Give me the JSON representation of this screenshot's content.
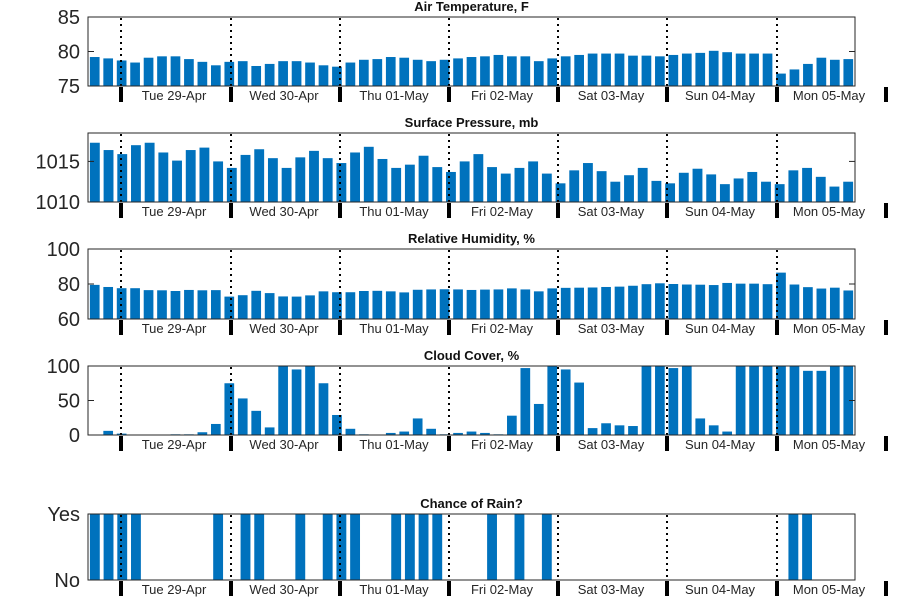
{
  "colors": {
    "bar": "#0072bd",
    "axis": "#262626",
    "text": "#262626",
    "day_divider": "#000000"
  },
  "chart_data": [
    {
      "type": "bar",
      "title": "Air Temperature, F",
      "x_tick_labels": [
        "Tue 29-Apr",
        "Wed 30-Apr",
        "Thu 01-May",
        "Fri 02-May",
        "Sat 03-May",
        "Sun 04-May",
        "Mon 05-May"
      ],
      "y_ticks": [
        "75",
        "80",
        "85"
      ],
      "ylim": [
        75,
        85
      ],
      "values": [
        79.2,
        79.0,
        78.7,
        78.4,
        79.1,
        79.3,
        79.3,
        78.9,
        78.5,
        78.0,
        78.5,
        78.6,
        77.9,
        78.2,
        78.6,
        78.6,
        78.4,
        78.0,
        77.8,
        78.4,
        78.8,
        78.9,
        79.2,
        79.1,
        78.8,
        78.6,
        78.8,
        79.0,
        79.2,
        79.3,
        79.5,
        79.3,
        79.3,
        78.6,
        79.0,
        79.3,
        79.5,
        79.7,
        79.7,
        79.7,
        79.4,
        79.4,
        79.3,
        79.5,
        79.7,
        79.8,
        80.1,
        79.9,
        79.7,
        79.7,
        79.7,
        76.8,
        77.4,
        78.2,
        79.1,
        78.8,
        78.9
      ]
    },
    {
      "type": "bar",
      "title": "Surface Pressure, mb",
      "x_tick_labels": [
        "Tue 29-Apr",
        "Wed 30-Apr",
        "Thu 01-May",
        "Fri 02-May",
        "Sat 03-May",
        "Sun 04-May",
        "Mon 05-May"
      ],
      "y_ticks": [
        "1010",
        "1015"
      ],
      "ylim": [
        1010,
        1018.5
      ],
      "values": [
        1017.3,
        1016.4,
        1015.9,
        1017.0,
        1017.3,
        1016.1,
        1015.1,
        1016.4,
        1016.7,
        1015.0,
        1014.2,
        1015.8,
        1016.5,
        1015.4,
        1014.2,
        1015.5,
        1016.3,
        1015.4,
        1014.8,
        1016.1,
        1016.8,
        1015.3,
        1014.2,
        1014.6,
        1015.7,
        1014.3,
        1013.7,
        1015.0,
        1015.9,
        1014.3,
        1013.5,
        1014.2,
        1015.0,
        1013.5,
        1012.3,
        1013.9,
        1014.8,
        1013.8,
        1012.5,
        1013.3,
        1014.2,
        1012.6,
        1012.3,
        1013.6,
        1014.1,
        1013.4,
        1012.2,
        1012.9,
        1013.7,
        1012.5,
        1012.2,
        1013.9,
        1014.2,
        1013.1,
        1011.9,
        1012.5
      ]
    },
    {
      "type": "bar",
      "title": "Relative Humidity, %",
      "x_tick_labels": [
        "Tue 29-Apr",
        "Wed 30-Apr",
        "Thu 01-May",
        "Fri 02-May",
        "Sat 03-May",
        "Sun 04-May",
        "Mon 05-May"
      ],
      "y_ticks": [
        "60",
        "80",
        "100"
      ],
      "ylim": [
        60,
        100
      ],
      "values": [
        79.5,
        78.3,
        77.6,
        77.6,
        76.5,
        76.4,
        76.0,
        76.6,
        76.4,
        76.5,
        72.8,
        73.6,
        76.1,
        74.8,
        72.9,
        72.8,
        73.5,
        75.8,
        75.3,
        75.3,
        76.0,
        76.1,
        75.8,
        75.2,
        76.7,
        76.9,
        77.0,
        76.9,
        76.6,
        76.8,
        76.9,
        77.5,
        76.9,
        75.8,
        77.5,
        77.8,
        77.9,
        78.0,
        78.3,
        78.5,
        79.0,
        79.9,
        80.4,
        80.0,
        79.7,
        79.6,
        79.4,
        80.6,
        80.2,
        80.2,
        79.9,
        86.5,
        79.7,
        78.2,
        77.4,
        77.9,
        76.3
      ]
    },
    {
      "type": "bar",
      "title": "Cloud Cover, %",
      "x_tick_labels": [
        "Tue 29-Apr",
        "Wed 30-Apr",
        "Thu 01-May",
        "Fri 02-May",
        "Sat 03-May",
        "Sun 04-May",
        "Mon 05-May"
      ],
      "y_ticks": [
        "0",
        "50",
        "100"
      ],
      "ylim": [
        0,
        100
      ],
      "values": [
        0,
        6,
        2,
        0,
        0,
        0,
        1,
        1,
        4,
        16,
        75,
        53,
        35,
        11,
        100,
        95,
        100,
        75,
        29,
        9,
        1,
        0,
        3,
        5,
        24,
        9,
        1,
        3,
        5,
        3,
        1,
        28,
        97,
        45,
        100,
        95,
        76,
        10,
        17,
        14,
        13,
        100,
        100,
        97,
        100,
        24,
        14,
        5,
        100,
        100,
        100,
        100,
        100,
        93,
        93,
        100,
        100
      ]
    },
    {
      "type": "bar",
      "title": "Chance of Rain?",
      "x_tick_labels": [
        "Tue 29-Apr",
        "Wed 30-Apr",
        "Thu 01-May",
        "Fri 02-May",
        "Sat 03-May",
        "Sun 04-May",
        "Mon 05-May"
      ],
      "y_ticks": [
        "No",
        "Yes"
      ],
      "ylim": [
        0,
        1
      ],
      "values": [
        1,
        1,
        1,
        1,
        0,
        0,
        0,
        0,
        0,
        1,
        0,
        1,
        1,
        0,
        0,
        1,
        0,
        1,
        1,
        1,
        0,
        0,
        1,
        1,
        1,
        1,
        0,
        0,
        0,
        1,
        0,
        1,
        0,
        1,
        0,
        0,
        0,
        0,
        0,
        0,
        0,
        0,
        0,
        0,
        0,
        0,
        0,
        0,
        0,
        0,
        0,
        1,
        1,
        0,
        0,
        0
      ]
    }
  ]
}
